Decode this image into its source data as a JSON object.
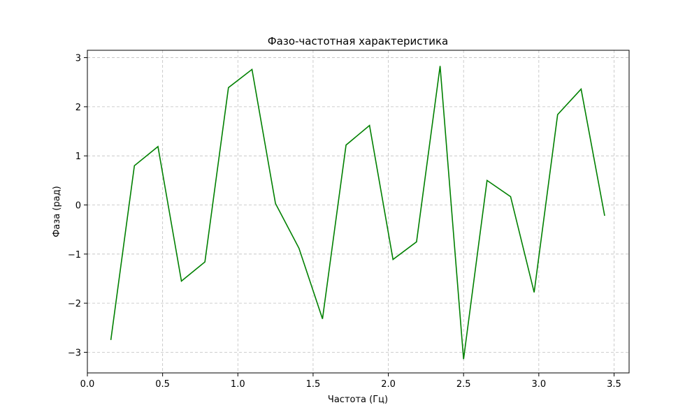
{
  "chart_data": {
    "type": "line",
    "title": "Фазо-частотная характеристика",
    "xlabel": "Частота (Гц)",
    "ylabel": "Фаза (рад)",
    "xlim": [
      0,
      3.6
    ],
    "ylim": [
      -3.42,
      3.15
    ],
    "xticks": [
      0.0,
      0.5,
      1.0,
      1.5,
      2.0,
      2.5,
      3.0,
      3.5
    ],
    "xtick_labels": [
      "0.0",
      "0.5",
      "1.0",
      "1.5",
      "2.0",
      "2.5",
      "3.0",
      "3.5"
    ],
    "yticks": [
      -3,
      -2,
      -1,
      0,
      1,
      2,
      3
    ],
    "ytick_labels": [
      "−3",
      "−2",
      "−1",
      "0",
      "1",
      "2",
      "3"
    ],
    "grid": true,
    "color": "#008000",
    "series": [
      {
        "x": [
          0.156,
          0.3125,
          0.469,
          0.625,
          0.781,
          0.9375,
          1.094,
          1.25,
          1.406,
          1.5625,
          1.719,
          1.875,
          2.031,
          2.1875,
          2.344,
          2.5,
          2.656,
          2.8125,
          2.969,
          3.125,
          3.281,
          3.4375
        ],
        "y": [
          -2.75,
          0.8,
          1.19,
          -1.55,
          -1.16,
          2.39,
          2.76,
          0.03,
          -0.88,
          -2.32,
          1.22,
          1.62,
          -1.11,
          -0.75,
          2.83,
          -3.14,
          0.5,
          0.17,
          -1.78,
          1.84,
          2.36,
          -0.22
        ]
      }
    ]
  }
}
